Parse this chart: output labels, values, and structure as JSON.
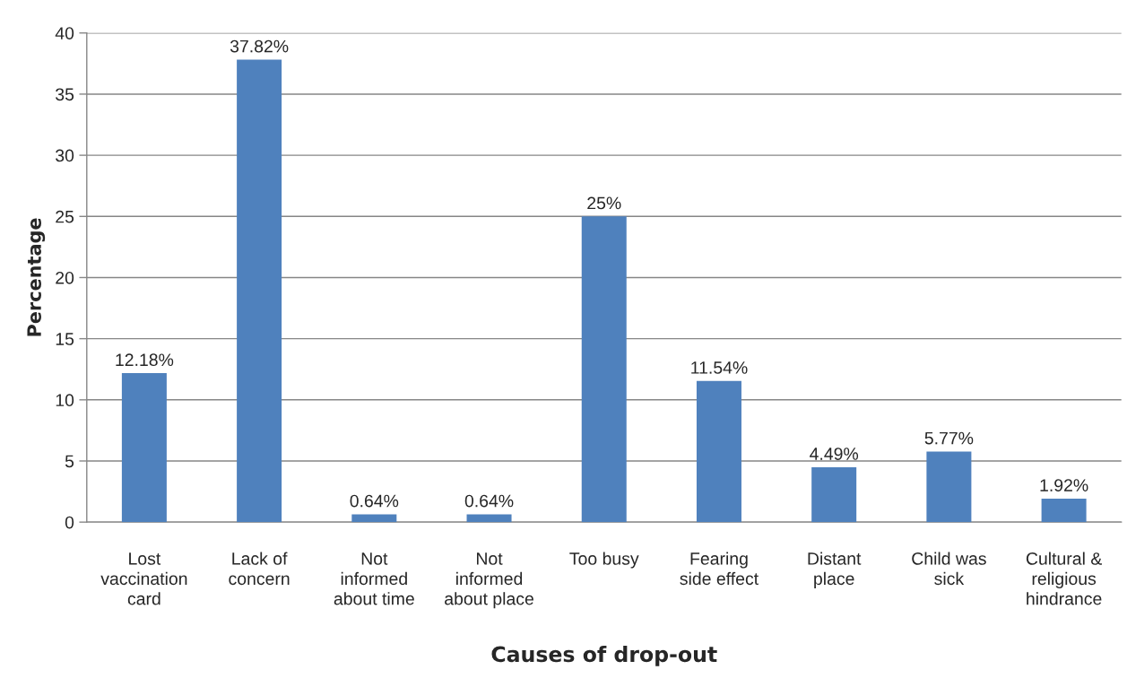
{
  "chart_data": {
    "type": "bar",
    "xlabel": "Causes of drop-out",
    "ylabel": "Percentage",
    "categories": [
      "Lost\nvaccination\ncard",
      "Lack of\nconcern",
      "Not\ninformed\nabout time",
      "Not\ninformed\nabout place",
      "Too busy",
      "Fearing\nside effect",
      "Distant\nplace",
      "Child was\nsick",
      "Cultural &\nreligious\nhindrance"
    ],
    "values": [
      12.18,
      37.82,
      0.64,
      0.64,
      25,
      11.54,
      4.49,
      5.77,
      1.92
    ],
    "value_labels": [
      "12.18%",
      "37.82%",
      "0.64%",
      "0.64%",
      "25%",
      "11.54%",
      "4.49%",
      "5.77%",
      "1.92%"
    ],
    "color": "#4f81bd",
    "ylim": [
      0,
      40
    ],
    "yticks": [
      0,
      5,
      10,
      15,
      20,
      25,
      30,
      35,
      40
    ],
    "grid": "y",
    "legend": false
  }
}
